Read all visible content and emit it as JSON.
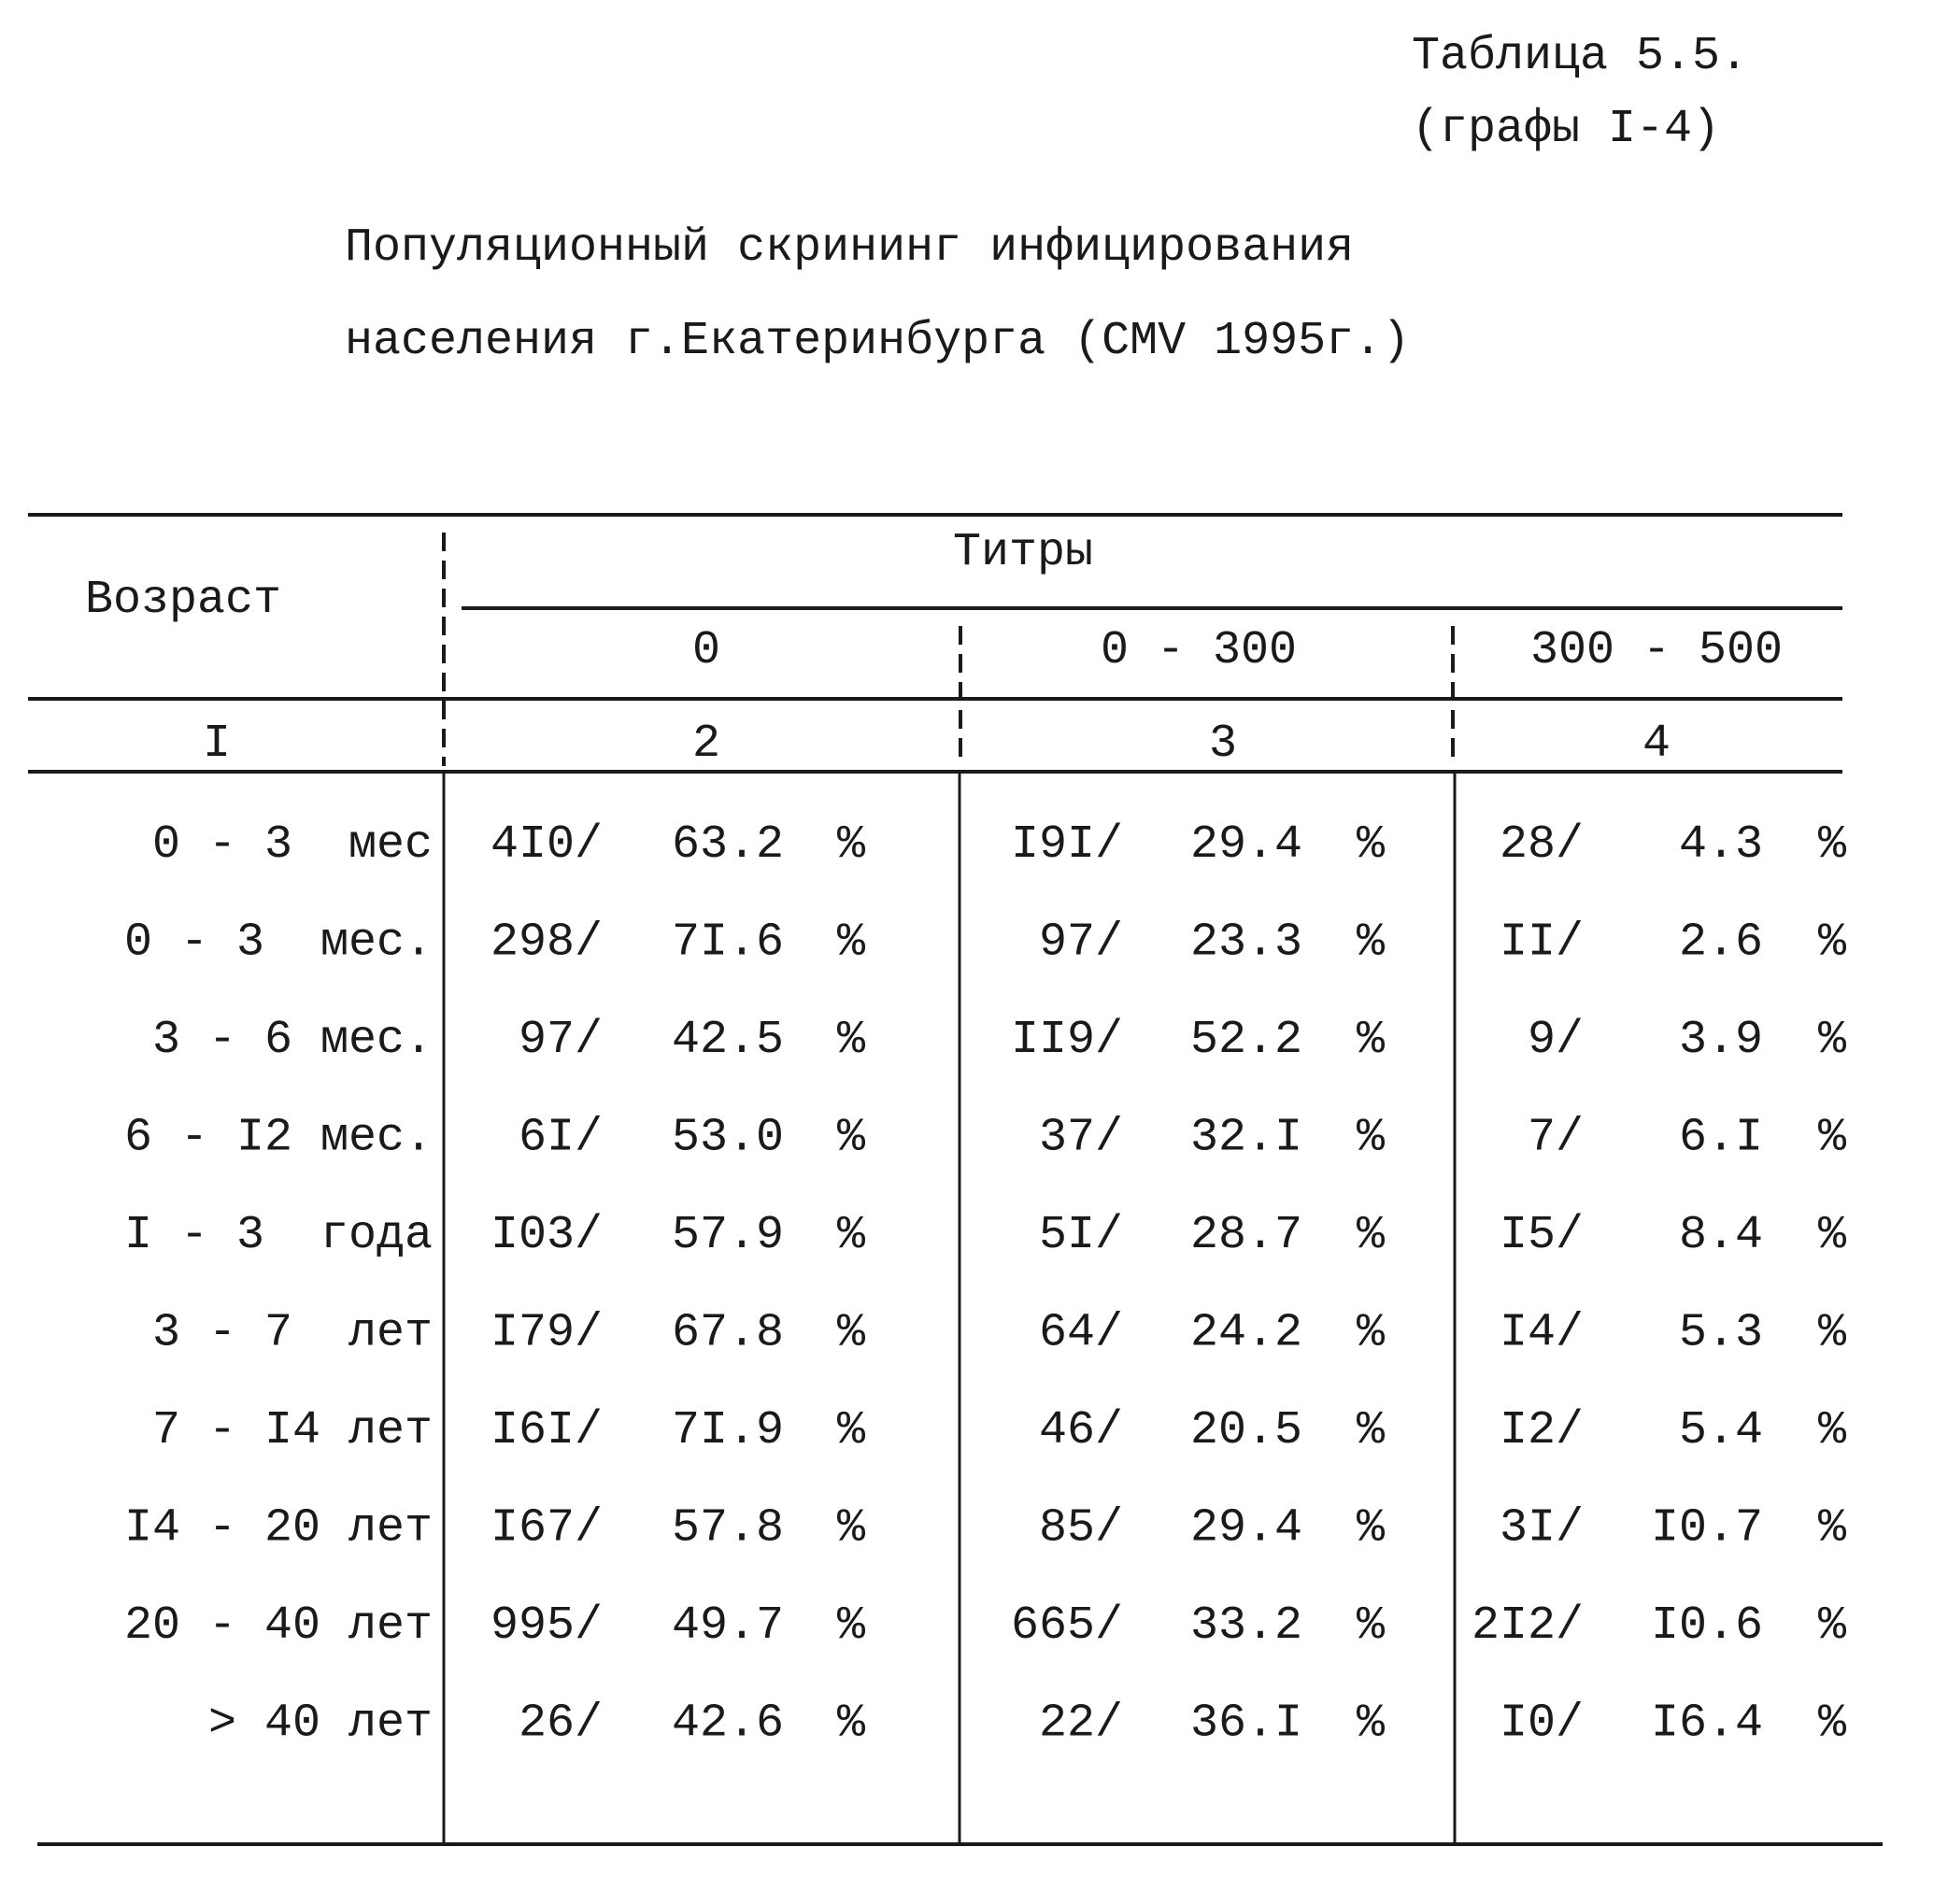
{
  "header": {
    "table_label": "Таблица 5.5.",
    "columns_note": "(графы I-4)",
    "title_lines": [
      "Популяционный скрининг инфицирования",
      "населения г.Екатеринбурга (CMV 1995г.)"
    ]
  },
  "table": {
    "age_header": "Возраст",
    "titers_header": "Титры",
    "titer_groups": [
      "0",
      "0 - 300",
      "300 - 500"
    ],
    "column_numbers": [
      "I",
      "2",
      "3",
      "4"
    ],
    "rows": [
      {
        "age": "0 - 3  мес",
        "cells": [
          [
            "4I0/",
            "63.2",
            "%"
          ],
          [
            "I9I/",
            "29.4",
            "%"
          ],
          [
            "28/",
            "4.3",
            "%"
          ]
        ]
      },
      {
        "age": "0 - 3  мес.",
        "cells": [
          [
            "298/",
            "7I.6",
            "%"
          ],
          [
            "97/",
            "23.3",
            "%"
          ],
          [
            "II/",
            "2.6",
            "%"
          ]
        ]
      },
      {
        "age": "3 - 6 мес.",
        "cells": [
          [
            "97/",
            "42.5",
            "%"
          ],
          [
            "II9/",
            "52.2",
            "%"
          ],
          [
            "9/",
            "3.9",
            "%"
          ]
        ]
      },
      {
        "age": "6 - I2 мес.",
        "cells": [
          [
            "6I/",
            "53.0",
            "%"
          ],
          [
            "37/",
            "32.I",
            "%"
          ],
          [
            "7/",
            "6.I",
            "%"
          ]
        ]
      },
      {
        "age": "I - 3  года",
        "cells": [
          [
            "I03/",
            "57.9",
            "%"
          ],
          [
            "5I/",
            "28.7",
            "%"
          ],
          [
            "I5/",
            "8.4",
            "%"
          ]
        ]
      },
      {
        "age": "3 - 7  лет",
        "cells": [
          [
            "I79/",
            "67.8",
            "%"
          ],
          [
            "64/",
            "24.2",
            "%"
          ],
          [
            "I4/",
            "5.3",
            "%"
          ]
        ]
      },
      {
        "age": "7 - I4 лет",
        "cells": [
          [
            "I6I/",
            "7I.9",
            "%"
          ],
          [
            "46/",
            "20.5",
            "%"
          ],
          [
            "I2/",
            "5.4",
            "%"
          ]
        ]
      },
      {
        "age": "I4 - 20 лет",
        "cells": [
          [
            "I67/",
            "57.8",
            "%"
          ],
          [
            "85/",
            "29.4",
            "%"
          ],
          [
            "3I/",
            "I0.7",
            "%"
          ]
        ]
      },
      {
        "age": "20 - 40 лет",
        "cells": [
          [
            "995/",
            "49.7",
            "%"
          ],
          [
            "665/",
            "33.2",
            "%"
          ],
          [
            "2I2/",
            "I0.6",
            "%"
          ]
        ]
      },
      {
        "age": "> 40 лет",
        "cells": [
          [
            "26/",
            "42.6",
            "%"
          ],
          [
            "22/",
            "36.I",
            "%"
          ],
          [
            "I0/",
            "I6.4",
            "%"
          ]
        ]
      }
    ]
  }
}
